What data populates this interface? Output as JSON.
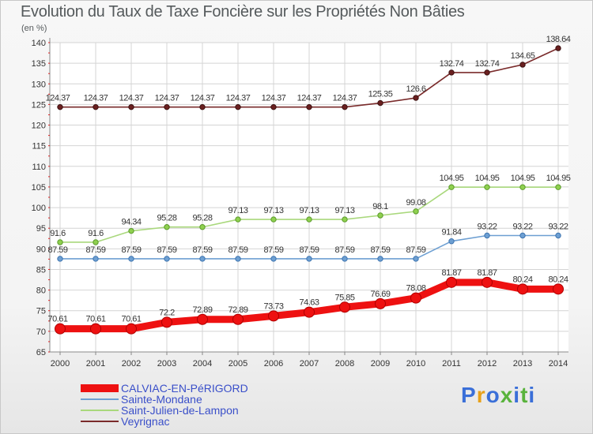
{
  "header": {
    "title": "Evolution du Taux de Taxe Foncière sur les Propriétés Non Bâties",
    "unit": "(en %)"
  },
  "logo": {
    "text": "Proxiti",
    "colors": [
      "#3a6fd8",
      "#e8a11a",
      "#3a6fd8",
      "#59b33c",
      "#3a6fd8",
      "#59b33c",
      "#3a6fd8"
    ]
  },
  "chart_data": {
    "type": "line",
    "ylim": [
      65,
      140
    ],
    "yticks": [
      65,
      70,
      75,
      80,
      85,
      90,
      95,
      100,
      105,
      110,
      115,
      120,
      125,
      130,
      135,
      140
    ],
    "x": [
      "2000",
      "2001",
      "2002",
      "2003",
      "2004",
      "2005",
      "2006",
      "2007",
      "2008",
      "2009",
      "2010",
      "2011",
      "2012",
      "2013",
      "2014"
    ],
    "grid": true,
    "legend_position": "bottom-left",
    "series": [
      {
        "name": "CALVIAC-EN-PéRIGORD",
        "color": "#ee1111",
        "values": [
          70.61,
          70.61,
          70.61,
          72.2,
          72.89,
          72.89,
          73.73,
          74.63,
          75.85,
          76.69,
          78.08,
          81.87,
          81.87,
          80.24,
          80.24
        ],
        "labels": [
          "70.61",
          "70.61",
          "70.61",
          "72.2",
          "72.89",
          "72.89",
          "73.73",
          "74.63",
          "75.85",
          "76.69",
          "78.08",
          "81.87",
          "81.87",
          "80.24",
          "80.24"
        ]
      },
      {
        "name": "Sainte-Mondane",
        "color": "#6d9fd2",
        "values": [
          87.59,
          87.59,
          87.59,
          87.59,
          87.59,
          87.59,
          87.59,
          87.59,
          87.59,
          87.59,
          87.59,
          91.84,
          93.22,
          93.22,
          93.22
        ],
        "labels": [
          "87.59",
          "87.59",
          "87.59",
          "87.59",
          "87.59",
          "87.59",
          "87.59",
          "87.59",
          "87.59",
          "87.59",
          "87.59",
          "91.84",
          "93.22",
          "93.22",
          "93.22"
        ]
      },
      {
        "name": "Saint-Julien-de-Lampon",
        "color": "#a9d87c",
        "values": [
          91.6,
          91.6,
          94.34,
          95.28,
          95.28,
          97.13,
          97.13,
          97.13,
          97.13,
          98.1,
          99.08,
          104.95,
          104.95,
          104.95,
          104.95
        ],
        "labels": [
          "91.6",
          "91.6",
          "94.34",
          "95.28",
          "95.28",
          "97.13",
          "97.13",
          "97.13",
          "97.13",
          "98.1",
          "99.08",
          "104.95",
          "104.95",
          "104.95",
          "104.95"
        ]
      },
      {
        "name": "Veyrignac",
        "color": "#7a2b2b",
        "values": [
          124.37,
          124.37,
          124.37,
          124.37,
          124.37,
          124.37,
          124.37,
          124.37,
          124.37,
          125.35,
          126.6,
          132.74,
          132.74,
          134.65,
          138.64
        ],
        "labels": [
          "124.37",
          "124.37",
          "124.37",
          "124.37",
          "124.37",
          "124.37",
          "124.37",
          "124.37",
          "124.37",
          "125.35",
          "126.6",
          "132.74",
          "132.74",
          "134.65",
          "138.64"
        ]
      }
    ]
  }
}
